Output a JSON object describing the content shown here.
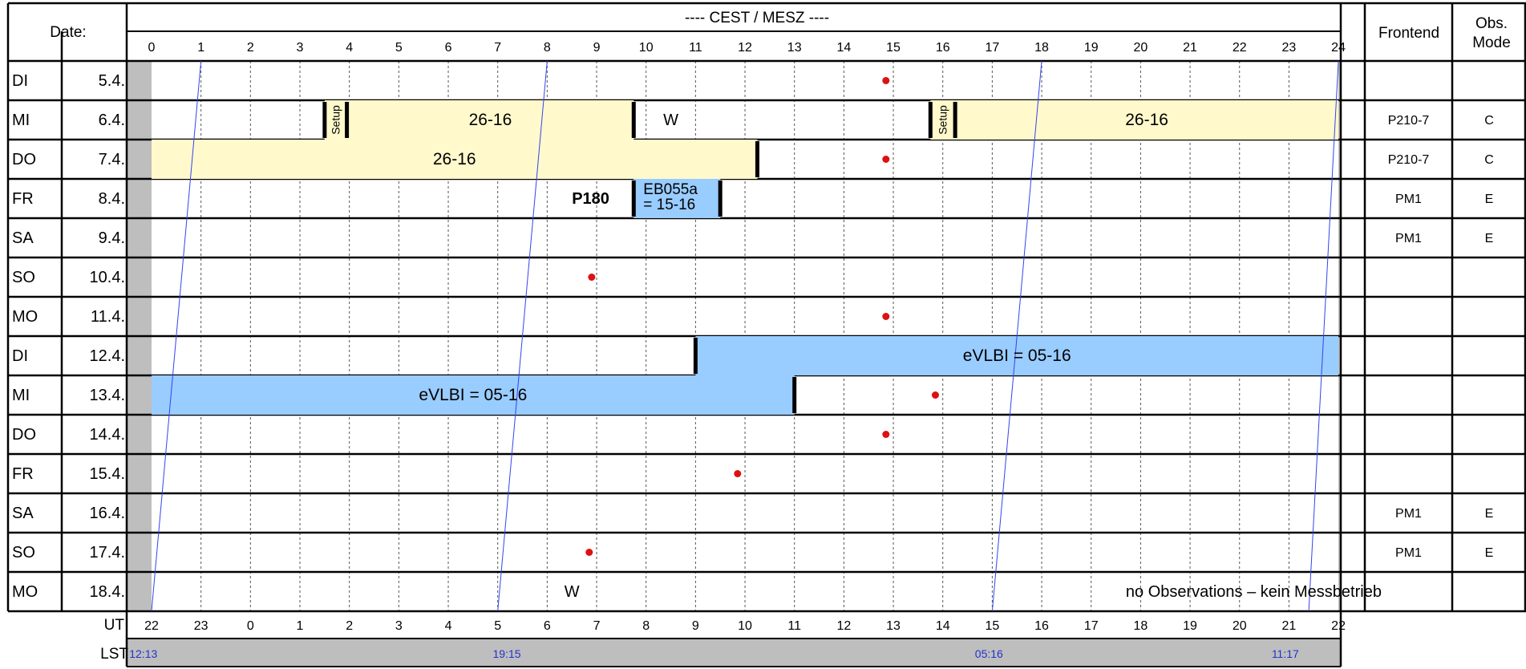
{
  "header": {
    "date_label": "Date:",
    "timezone_title": "---- CEST / MESZ ----",
    "frontend_label": "Frontend",
    "obs_label": "Obs.",
    "mode_label": "Mode",
    "hour_ticks": [
      "0",
      "1",
      "2",
      "3",
      "4",
      "5",
      "6",
      "7",
      "8",
      "9",
      "10",
      "11",
      "12",
      "13",
      "14",
      "15",
      "16",
      "17",
      "18",
      "19",
      "20",
      "21",
      "22",
      "23",
      "24"
    ]
  },
  "rows": [
    {
      "day": "DI",
      "date": "5.4.",
      "frontend": "",
      "mode": ""
    },
    {
      "day": "MI",
      "date": "6.4.",
      "frontend": "P210-7",
      "mode": "C"
    },
    {
      "day": "DO",
      "date": "7.4.",
      "frontend": "P210-7",
      "mode": "C"
    },
    {
      "day": "FR",
      "date": "8.4.",
      "frontend": "PM1",
      "mode": "E"
    },
    {
      "day": "SA",
      "date": "9.4.",
      "frontend": "PM1",
      "mode": "E"
    },
    {
      "day": "SO",
      "date": "10.4.",
      "frontend": "",
      "mode": ""
    },
    {
      "day": "MO",
      "date": "11.4.",
      "frontend": "",
      "mode": ""
    },
    {
      "day": "DI",
      "date": "12.4.",
      "frontend": "",
      "mode": ""
    },
    {
      "day": "MI",
      "date": "13.4.",
      "frontend": "",
      "mode": ""
    },
    {
      "day": "DO",
      "date": "14.4.",
      "frontend": "",
      "mode": ""
    },
    {
      "day": "FR",
      "date": "15.4.",
      "frontend": "",
      "mode": ""
    },
    {
      "day": "SA",
      "date": "16.4.",
      "frontend": "PM1",
      "mode": "E"
    },
    {
      "day": "SO",
      "date": "17.4.",
      "frontend": "PM1",
      "mode": "E"
    },
    {
      "day": "MO",
      "date": "18.4.",
      "frontend": "",
      "mode": ""
    }
  ],
  "blocks": [
    {
      "row": 1,
      "start": 3.5,
      "end": 3.95,
      "color": "#fff9cc",
      "label": "Setup",
      "vertical": true
    },
    {
      "row": 1,
      "start": 3.95,
      "end": 9.75,
      "color": "#fff9cc",
      "label": "26-16"
    },
    {
      "row": 1,
      "start": 15.75,
      "end": 16.25,
      "color": "#fff9cc",
      "label": "Setup",
      "vertical": true
    },
    {
      "row": 1,
      "start": 16.25,
      "end": 24,
      "color": "#fff9cc",
      "label": "26-16"
    },
    {
      "row": 2,
      "start": 0,
      "end": 12.25,
      "color": "#fff9cc",
      "label": "26-16"
    },
    {
      "row": 3,
      "start": 9.75,
      "end": 11.5,
      "color": "#99ccff",
      "label": "EB055a\n= 15-16",
      "align": "left"
    },
    {
      "row": 7,
      "start": 11,
      "end": 24,
      "color": "#99ccff",
      "label": "eVLBI = 05-16"
    },
    {
      "row": 8,
      "start": 0,
      "end": 13,
      "color": "#99ccff",
      "label": "eVLBI = 05-16"
    }
  ],
  "markers": [
    {
      "row": 1,
      "start": 3.5
    },
    {
      "row": 1,
      "start": 3.95
    },
    {
      "row": 1,
      "start": 9.75
    },
    {
      "row": 1,
      "start": 15.75
    },
    {
      "row": 1,
      "start": 16.25
    },
    {
      "row": 2,
      "start": 12.25
    },
    {
      "row": 3,
      "start": 9.75
    },
    {
      "row": 3,
      "start": 11.5
    },
    {
      "row": 7,
      "start": 11
    },
    {
      "row": 8,
      "start": 13
    }
  ],
  "texts": [
    {
      "row": 1,
      "hour": 10.5,
      "label": "W",
      "bold": false
    },
    {
      "row": 3,
      "hour": 8.5,
      "label": "P180",
      "bold": true
    },
    {
      "row": 13,
      "hour": 8.5,
      "label": "W",
      "bold": false
    },
    {
      "row": 13,
      "hour": 19.7,
      "label": "no Observations – kein Messbetrieb",
      "bold": false
    }
  ],
  "dots": [
    {
      "row": 0,
      "hour": 14.85
    },
    {
      "row": 2,
      "hour": 14.85
    },
    {
      "row": 5,
      "hour": 8.9
    },
    {
      "row": 6,
      "hour": 14.85
    },
    {
      "row": 8,
      "hour": 15.85
    },
    {
      "row": 9,
      "hour": 14.85
    },
    {
      "row": 10,
      "hour": 11.85
    },
    {
      "row": 12,
      "hour": 8.85
    }
  ],
  "ut": {
    "label": "UT",
    "ticks": [
      "22",
      "23",
      "0",
      "1",
      "2",
      "3",
      "4",
      "5",
      "6",
      "7",
      "8",
      "9",
      "10",
      "11",
      "12",
      "13",
      "14",
      "15",
      "16",
      "17",
      "18",
      "19",
      "20",
      "21",
      "22"
    ]
  },
  "lst": {
    "label": "LST",
    "marks": [
      {
        "hour": -0.45,
        "label": "12:13"
      },
      {
        "hour": 6.9,
        "label": "19:15"
      },
      {
        "hour": 16.65,
        "label": "05:16"
      },
      {
        "hour": 22.65,
        "label": "11:17"
      }
    ]
  },
  "lst_lines": [
    {
      "hour_top": 1,
      "hour_bottom": 0
    },
    {
      "hour_top": 8,
      "hour_bottom": 7
    },
    {
      "hour_top": 18,
      "hour_bottom": 17
    },
    {
      "hour_top": 24,
      "hour_bottom": 23.4
    }
  ],
  "colors": {
    "yellow": "#fff9cc",
    "blue": "#99ccff",
    "grey": "#bebebe",
    "dot": "#dd1111",
    "lst_line": "#3344ee",
    "lst_text": "#2233cc"
  }
}
